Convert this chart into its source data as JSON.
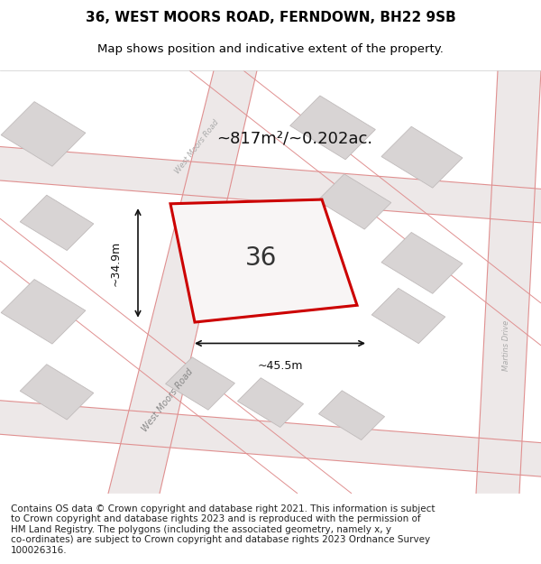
{
  "title_line1": "36, WEST MOORS ROAD, FERNDOWN, BH22 9SB",
  "title_line2": "Map shows position and indicative extent of the property.",
  "footer_text": "Contains OS data © Crown copyright and database right 2021. This information is subject\nto Crown copyright and database rights 2023 and is reproduced with the permission of\nHM Land Registry. The polygons (including the associated geometry, namely x, y\nco-ordinates) are subject to Crown copyright and database rights 2023 Ordnance Survey\n100026316.",
  "area_label": "~817m²/~0.202ac.",
  "number_label": "36",
  "dim_width": "~45.5m",
  "dim_height": "~34.9m",
  "road_label_main": "West Moors Road",
  "road_label_top": "West Moors Road",
  "road_label_right": "Martins Drive",
  "bg_color": "#f0eeee",
  "map_bg": "#f5f3f3",
  "plot_fill": "#f8f6f6",
  "plot_border": "#cc0000",
  "road_line_color": "#e8b0b0",
  "building_fill": "#d8d4d4",
  "building_border": "#c0bbbb",
  "dim_line_color": "#111111",
  "title_fontsize": 11,
  "subtitle_fontsize": 9.5,
  "footer_fontsize": 7.5
}
